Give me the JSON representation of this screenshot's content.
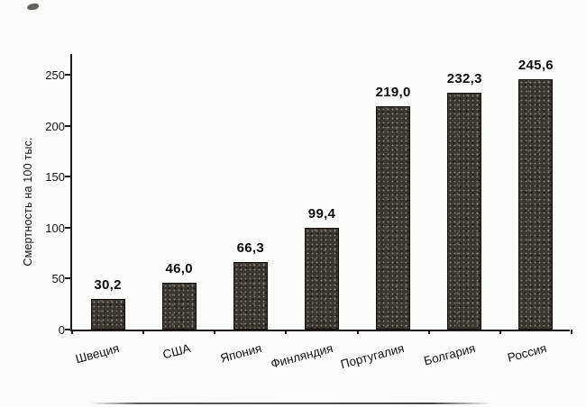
{
  "chart_data": {
    "type": "bar",
    "title": "",
    "categories": [
      "Швеция",
      "США",
      "Япония",
      "Финляндия",
      "Португалия",
      "Болгария",
      "Россия"
    ],
    "values": [
      30.2,
      46.0,
      66.3,
      99.4,
      219.0,
      232.3,
      245.6
    ],
    "value_labels": [
      "30,2",
      "46,0",
      "66,3",
      "99,4",
      "219,0",
      "232,3",
      "245,6"
    ],
    "xlabel": "",
    "ylabel": "Смертность на 100 тыс.",
    "ylim": [
      0,
      250
    ],
    "yticks": [
      0,
      50,
      100,
      150,
      200,
      250
    ],
    "grid": false,
    "legend": false,
    "bar_color": "#3b3630"
  }
}
